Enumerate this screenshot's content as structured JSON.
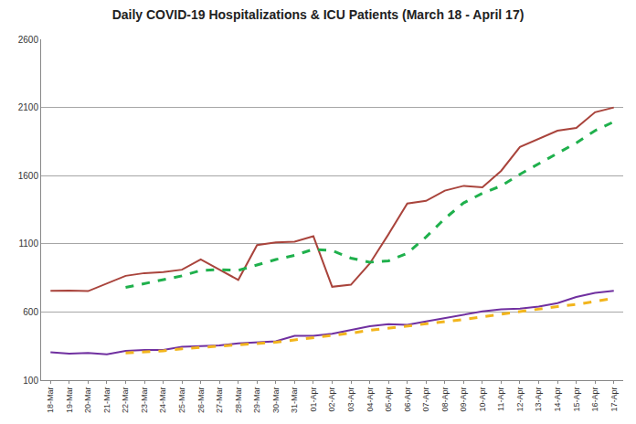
{
  "chart_data": {
    "type": "line",
    "title": "Daily COVID-19 Hospitalizations & ICU Patients (March 18 - April 17)",
    "categories": [
      "18-Mar",
      "19-Mar",
      "20-Mar",
      "21-Mar",
      "22-Mar",
      "23-Mar",
      "24-Mar",
      "25-Mar",
      "26-Mar",
      "27-Mar",
      "28-Mar",
      "29-Mar",
      "30-Mar",
      "31-Mar",
      "01-Apr",
      "02-Apr",
      "03-Apr",
      "04-Apr",
      "05-Apr",
      "06-Apr",
      "07-Apr",
      "08-Apr",
      "09-Apr",
      "10-Apr",
      "11-Apr",
      "12-Apr",
      "13-Apr",
      "14-Apr",
      "15-Apr",
      "16-Apr",
      "17-Apr"
    ],
    "series": [
      {
        "color": "#a9443c",
        "line_style": "solid",
        "values": [
          755,
          757,
          753,
          810,
          865,
          885,
          892,
          910,
          985,
          910,
          835,
          1090,
          1110,
          1115,
          1155,
          785,
          800,
          955,
          1170,
          1395,
          1415,
          1490,
          1525,
          1515,
          1635,
          1810,
          1870,
          1930,
          1950,
          2065,
          2100
        ]
      },
      {
        "color": "#1fb04c",
        "line_style": "dash",
        "values": [
          null,
          null,
          null,
          null,
          780,
          810,
          835,
          865,
          905,
          910,
          905,
          945,
          985,
          1015,
          1060,
          1050,
          995,
          965,
          975,
          1030,
          1150,
          1285,
          1400,
          1470,
          1525,
          1610,
          1685,
          1760,
          1840,
          1930,
          1995
        ]
      },
      {
        "color": "#7030a0",
        "line_style": "solid",
        "values": [
          305,
          295,
          300,
          290,
          315,
          322,
          322,
          345,
          350,
          355,
          370,
          375,
          385,
          425,
          425,
          440,
          470,
          495,
          510,
          505,
          530,
          555,
          585,
          605,
          620,
          625,
          640,
          665,
          710,
          740,
          755
        ]
      },
      {
        "color": "#f2b51d",
        "line_style": "dash",
        "values": [
          null,
          null,
          null,
          null,
          300,
          308,
          315,
          330,
          340,
          348,
          358,
          368,
          378,
          395,
          410,
          425,
          445,
          465,
          480,
          495,
          510,
          525,
          545,
          565,
          585,
          605,
          625,
          640,
          655,
          680,
          700
        ]
      }
    ],
    "ylim": [
      100,
      2600
    ],
    "yticks": [
      100,
      600,
      1100,
      1600,
      2100,
      2600
    ],
    "grid": true
  }
}
